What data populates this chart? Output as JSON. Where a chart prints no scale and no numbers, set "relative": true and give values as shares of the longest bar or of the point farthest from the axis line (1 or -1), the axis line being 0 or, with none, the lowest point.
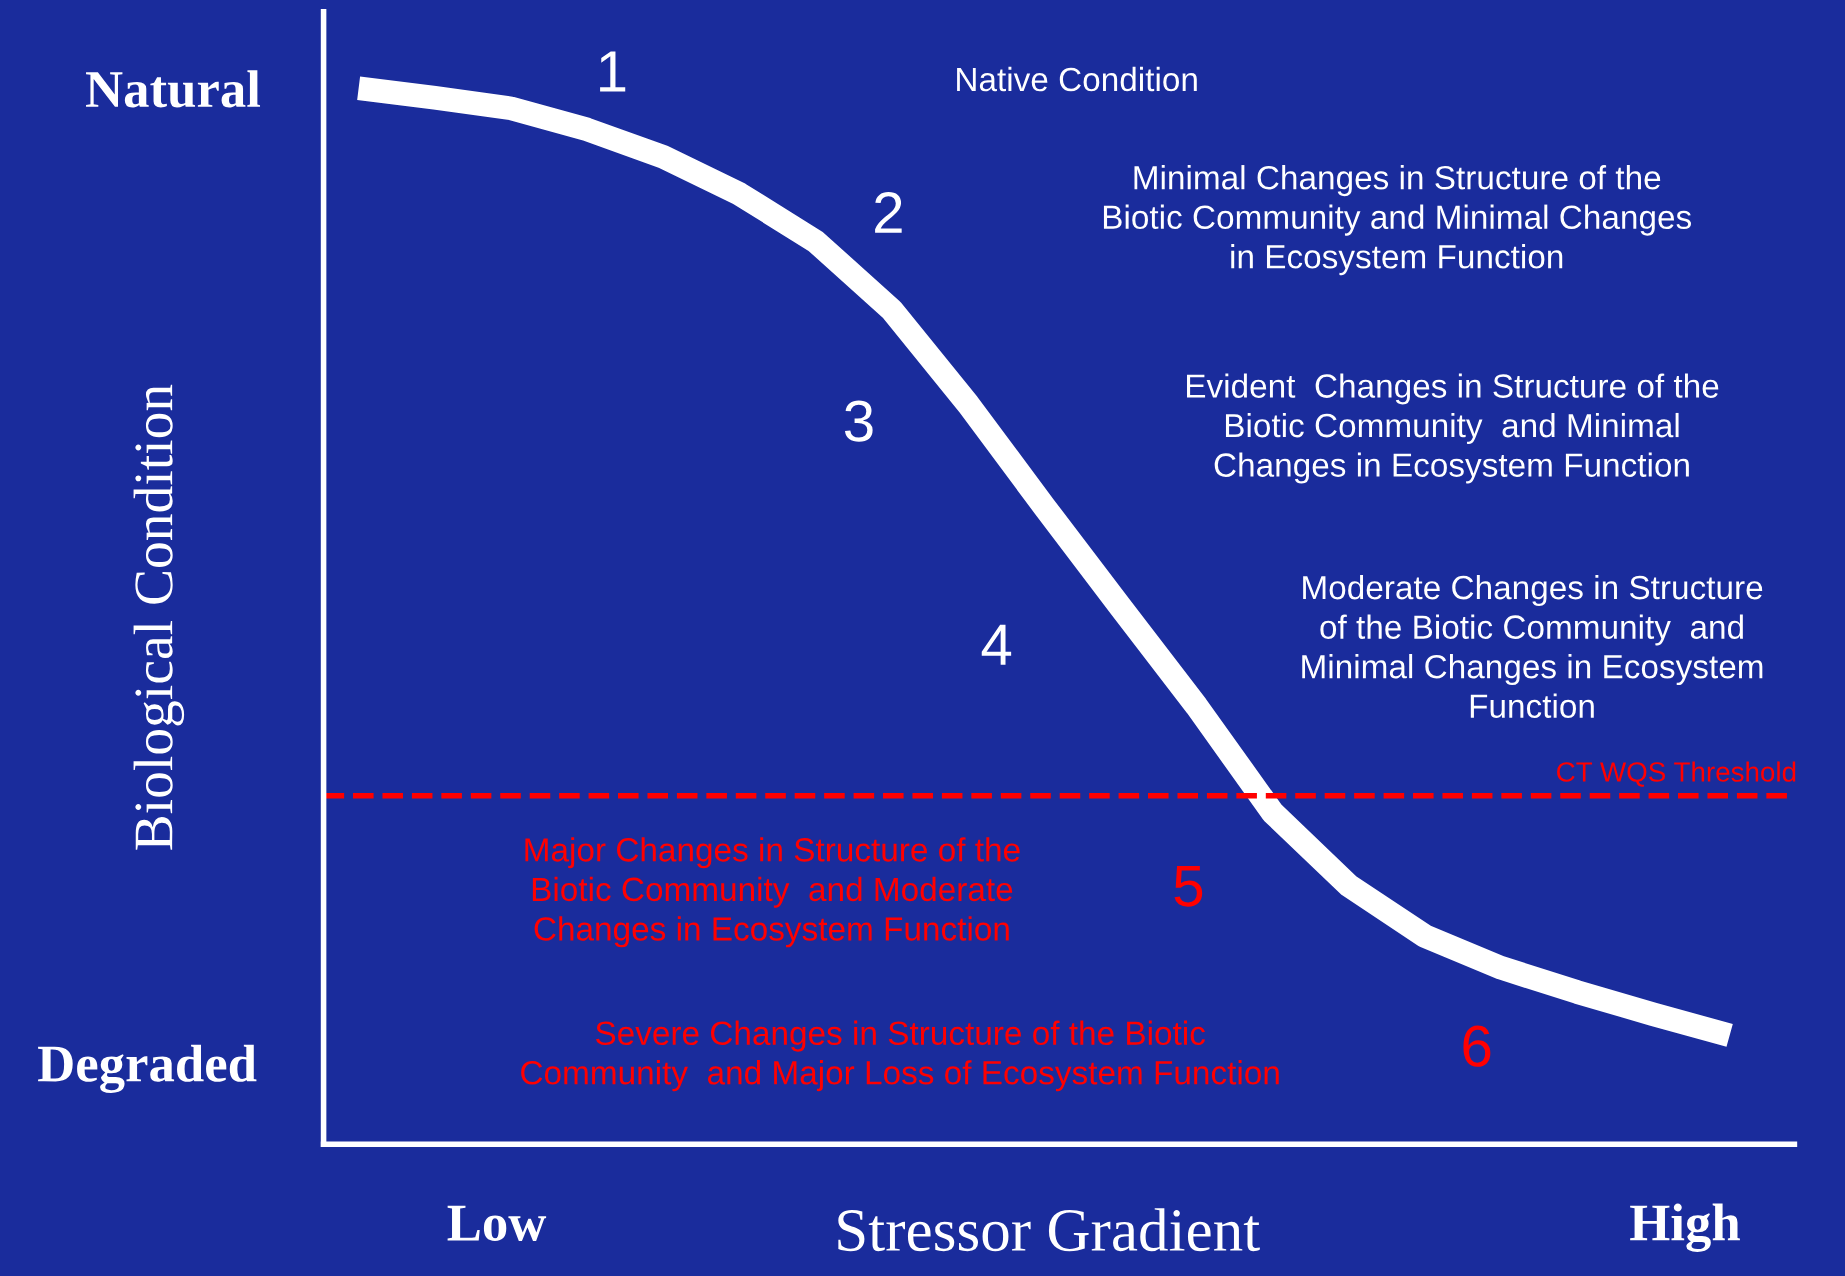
{
  "chart_data": {
    "type": "line",
    "relative": true,
    "xlabel": "Stressor Gradient",
    "ylabel": "Biological Condition",
    "categories": [
      null,
      null,
      null,
      null,
      null,
      null,
      null,
      null,
      null,
      null,
      null,
      null,
      null,
      null,
      null,
      null,
      null,
      null,
      null
    ],
    "series": [
      {
        "color": "#ffffff",
        "values": [
          1.0,
          0.991,
          0.981,
          0.961,
          0.935,
          0.9,
          0.855,
          0.79,
          0.701,
          0.604,
          0.509,
          0.415,
          0.314,
          0.245,
          0.197,
          0.167,
          0.144,
          0.123,
          0.103
        ]
      }
    ],
    "ref_lines": [
      {
        "axis": "y",
        "value": 0.33,
        "label": "CT WQS Threshold",
        "color": "#ff0000",
        "line_style": "dashed"
      }
    ],
    "annotations": [
      "Natural",
      "Degraded",
      "Low",
      "High",
      "1",
      "Native Condition",
      "2",
      "Minimal Changes in Structure of the\nBiotic Community and Minimal Changes\nin Ecosystem Function",
      "3",
      "Evident  Changes in Structure of the\nBiotic Community  and Minimal\nChanges in Ecosystem Function",
      "4",
      "Moderate Changes in Structure\nof the Biotic Community  and\nMinimal Changes in Ecosystem\nFunction",
      "Major Changes in Structure of the\nBiotic Community  and Moderate\nChanges in Ecosystem Function",
      "5",
      "Severe Changes in Structure of the Biotic\nCommunity  and Major Loss of Ecosystem Function",
      "6"
    ],
    "grid": false,
    "marker": "none",
    "line_style": "solid"
  }
}
